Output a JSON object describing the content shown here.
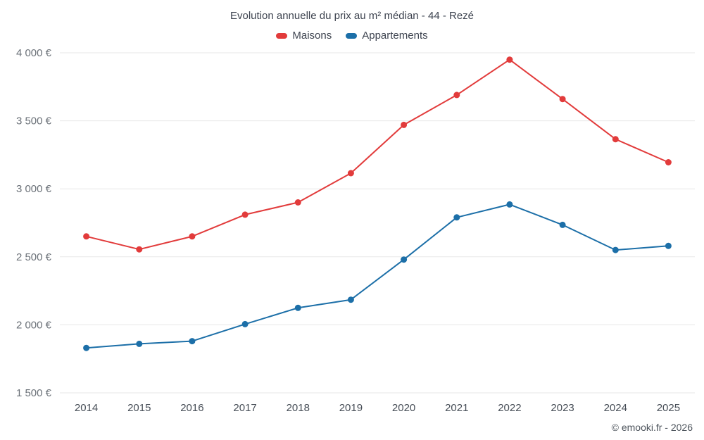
{
  "title": "Evolution annuelle du prix au m² médian - 44 - Rezé",
  "footer": "© emooki.fr - 2026",
  "chart_data": {
    "type": "line",
    "x": [
      "2014",
      "2015",
      "2016",
      "2017",
      "2018",
      "2019",
      "2020",
      "2021",
      "2022",
      "2023",
      "2024",
      "2025"
    ],
    "series": [
      {
        "name": "Maisons",
        "color": "#e23b3b",
        "values": [
          2650,
          2555,
          2650,
          2810,
          2900,
          3115,
          3470,
          3690,
          3950,
          3660,
          3365,
          3195
        ]
      },
      {
        "name": "Appartements",
        "color": "#1c6fa8",
        "values": [
          1830,
          1860,
          1880,
          2005,
          2125,
          2185,
          2480,
          2790,
          2885,
          2735,
          2550,
          2580
        ]
      }
    ],
    "ylim": [
      1500,
      4000
    ],
    "yticks": [
      {
        "value": 1500,
        "label": "1 500 €"
      },
      {
        "value": 2000,
        "label": "2 000 €"
      },
      {
        "value": 2500,
        "label": "2 500 €"
      },
      {
        "value": 3000,
        "label": "3 000 €"
      },
      {
        "value": 3500,
        "label": "3 500 €"
      },
      {
        "value": 4000,
        "label": "4 000 €"
      }
    ],
    "grid": true,
    "legend_position": "top",
    "styles": {
      "gridline_color": "#e7e7e7",
      "y_label_color": "#6b7178",
      "x_label_color": "#474e57",
      "marker_radius": 4.5,
      "line_width": 2
    }
  }
}
